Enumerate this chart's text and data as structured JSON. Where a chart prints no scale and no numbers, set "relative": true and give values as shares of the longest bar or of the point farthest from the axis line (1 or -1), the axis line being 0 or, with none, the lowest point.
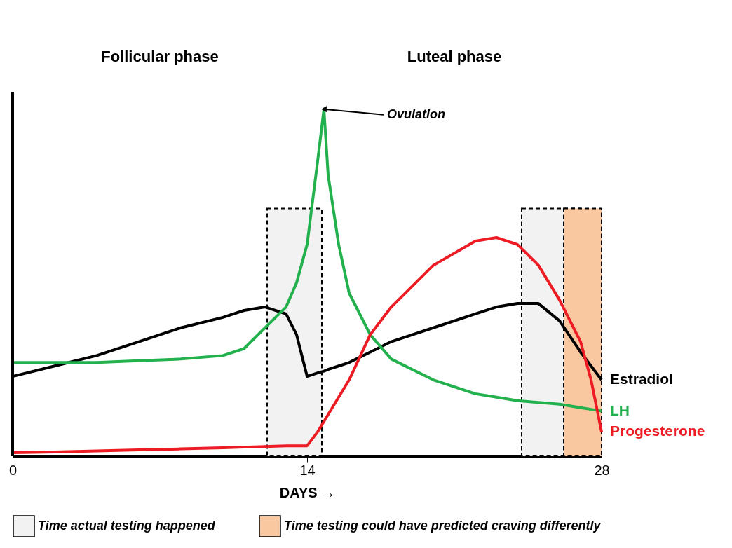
{
  "chart_data": {
    "type": "line",
    "relative": true,
    "xlabel": "DAYS →",
    "xlim": [
      0,
      28
    ],
    "xticks": [
      0,
      14,
      28
    ],
    "grid": false,
    "legend": "bottom",
    "line_style": "solid",
    "marker": "none",
    "x": [
      0,
      2,
      4,
      6,
      8,
      10,
      11,
      12,
      13,
      13.5,
      14,
      14.5,
      14.8,
      15,
      15.5,
      16,
      17,
      18,
      20,
      22,
      23,
      24,
      25,
      26,
      27,
      27.5,
      28
    ],
    "series": [
      {
        "name": "Estradiol",
        "color": "#000000",
        "values": [
          0.23,
          0.26,
          0.29,
          0.33,
          0.37,
          0.4,
          0.42,
          0.43,
          0.41,
          0.35,
          0.23,
          0.24,
          0.245,
          0.25,
          0.26,
          0.27,
          0.3,
          0.33,
          0.37,
          0.41,
          0.43,
          0.44,
          0.44,
          0.39,
          0.3,
          0.26,
          0.22
        ]
      },
      {
        "name": "LH",
        "color": "#22b14c",
        "values": [
          0.27,
          0.27,
          0.27,
          0.275,
          0.28,
          0.29,
          0.31,
          0.37,
          0.43,
          0.5,
          0.61,
          0.85,
          1.0,
          0.81,
          0.61,
          0.47,
          0.35,
          0.28,
          0.22,
          0.18,
          0.17,
          0.16,
          0.155,
          0.15,
          0.14,
          0.135,
          0.13
        ]
      },
      {
        "name": "Progesterone",
        "color": "#ed1c24",
        "values": [
          0.01,
          0.012,
          0.015,
          0.018,
          0.021,
          0.024,
          0.026,
          0.028,
          0.03,
          0.03,
          0.03,
          0.07,
          0.1,
          0.12,
          0.17,
          0.22,
          0.35,
          0.43,
          0.55,
          0.62,
          0.63,
          0.61,
          0.55,
          0.45,
          0.33,
          0.22,
          0.07
        ]
      }
    ],
    "bands": [
      {
        "axis": "x",
        "from": 12.1,
        "to": 14.7,
        "label": "Time actual testing happened",
        "color": "#f2f2f2"
      },
      {
        "axis": "x",
        "from": 24.2,
        "to": 27,
        "color": "#f2f2f2"
      },
      {
        "axis": "x",
        "from": 26.2,
        "to": 28,
        "label": "Time testing could have predicted craving differently",
        "color": "#fac8a0"
      }
    ],
    "annotations": [
      "Follicular phase",
      "Luteal phase",
      {
        "text": "Ovulation",
        "x": 14.8,
        "y": 1.0
      }
    ]
  }
}
